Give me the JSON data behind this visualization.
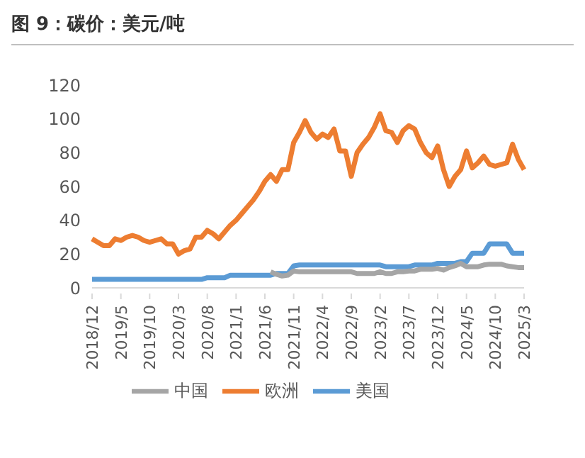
{
  "chart_data": {
    "type": "line",
    "title": "图 9：碳价：美元/吨",
    "categories": [
      "2018/12",
      null,
      null,
      null,
      null,
      "2019/5",
      null,
      null,
      null,
      null,
      "2019/10",
      null,
      null,
      null,
      null,
      "2020/3",
      null,
      null,
      null,
      null,
      "2020/8",
      null,
      null,
      null,
      null,
      "2021/1",
      null,
      null,
      null,
      null,
      "2021/6",
      null,
      null,
      null,
      null,
      "2021/11",
      null,
      null,
      null,
      null,
      "2022/4",
      null,
      null,
      null,
      null,
      "2022/9",
      null,
      null,
      null,
      null,
      "2023/2",
      null,
      null,
      null,
      null,
      "2023/7",
      null,
      null,
      null,
      null,
      "2023/12",
      null,
      null,
      null,
      null,
      "2024/5",
      null,
      null,
      null,
      null,
      "2024/10",
      null,
      null,
      null,
      null,
      "2025/3"
    ],
    "series": [
      {
        "name": "美国",
        "color": "#5b9bd5",
        "values": [
          5,
          5,
          5,
          5,
          5,
          5,
          5,
          5,
          5,
          5,
          5,
          5,
          5,
          5,
          5,
          5,
          5,
          5,
          5,
          5,
          6,
          6,
          6,
          6,
          7.5,
          7.5,
          7.5,
          7.5,
          7.5,
          7.5,
          7.5,
          7.5,
          8.5,
          8.5,
          8.5,
          13,
          13.5,
          13.5,
          13.5,
          13.5,
          13.5,
          13.5,
          13.5,
          13.5,
          13.5,
          13.5,
          13.5,
          13.5,
          13.5,
          13.5,
          13.5,
          12.5,
          12.5,
          12.5,
          12.5,
          12.5,
          13.5,
          13.5,
          13.5,
          13.5,
          14.5,
          14.5,
          14.5,
          14.5,
          15.5,
          15.5,
          20.5,
          20.5,
          20.5,
          26,
          26,
          26,
          26,
          20.5,
          20.5,
          20.5
        ]
      },
      {
        "name": "欧洲",
        "color": "#ed7d31",
        "values": [
          29,
          27,
          25,
          25,
          29,
          28,
          30,
          31,
          30,
          28,
          27,
          28,
          29,
          26,
          26,
          20,
          22,
          23,
          30,
          30,
          34,
          32,
          29,
          33,
          37,
          40,
          44,
          48,
          52,
          57,
          63,
          67,
          63,
          70,
          70,
          86,
          92,
          99,
          92,
          88,
          91,
          89,
          94,
          81,
          81,
          66,
          80,
          85,
          89,
          95,
          103,
          93,
          92,
          86,
          93,
          96,
          94,
          86,
          80,
          77,
          84,
          70,
          60,
          66,
          70,
          81,
          71,
          74,
          78,
          73,
          72,
          73,
          74,
          85,
          76,
          70
        ]
      },
      {
        "name": "中国",
        "color": "#a5a5a5",
        "values": [
          null,
          null,
          null,
          null,
          null,
          null,
          null,
          null,
          null,
          null,
          null,
          null,
          null,
          null,
          null,
          null,
          null,
          null,
          null,
          null,
          null,
          null,
          null,
          null,
          null,
          null,
          null,
          null,
          null,
          null,
          null,
          9.5,
          8,
          7,
          7.5,
          10,
          9.5,
          9.5,
          9.5,
          9.5,
          9.5,
          9.5,
          9.5,
          9.5,
          9.5,
          9.5,
          8.5,
          8.5,
          8.5,
          8.5,
          9.5,
          8.5,
          8.5,
          9.5,
          9.5,
          10,
          10,
          11,
          11,
          11,
          11.5,
          10.5,
          12,
          13,
          14.5,
          12.5,
          12.5,
          12.5,
          13.5,
          14,
          14,
          14,
          13,
          12.5,
          12,
          12
        ]
      }
    ],
    "ylim": [
      0,
      120
    ],
    "yticks": [
      0,
      20,
      40,
      60,
      80,
      100,
      120
    ],
    "legend": "bottom",
    "grid": false,
    "marker": "none",
    "line_style": "solid"
  }
}
